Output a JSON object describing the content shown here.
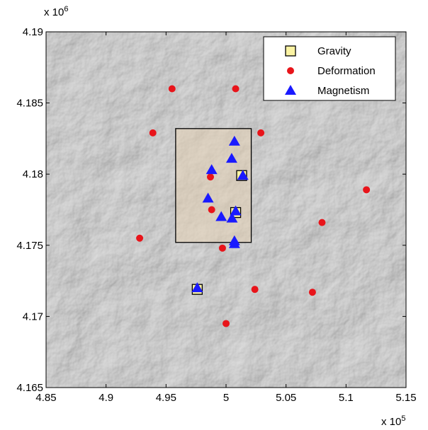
{
  "chart_data": {
    "type": "scatter",
    "xlim": [
      4.85,
      5.15
    ],
    "ylim": [
      4.165,
      4.19
    ],
    "xticks": [
      4.85,
      4.9,
      4.95,
      5,
      5.05,
      5.1,
      5.15
    ],
    "yticks": [
      4.165,
      4.17,
      4.175,
      4.18,
      4.185,
      4.19
    ],
    "x_multiplier": {
      "base": "x 10",
      "exponent": "5"
    },
    "y_multiplier": {
      "base": "x 10",
      "exponent": "6"
    },
    "legend": "upper right",
    "highlight_box": {
      "x": [
        4.958,
        5.021
      ],
      "y": [
        4.1752,
        4.1832
      ]
    },
    "series": [
      {
        "name": "Gravity",
        "color": "#fbf3a3",
        "marker": "square",
        "x": [
          5.013,
          5.008,
          4.976
        ],
        "y": [
          4.1799,
          4.1773,
          4.1719
        ]
      },
      {
        "name": "Deformation",
        "color": "#e8141a",
        "marker": "circle",
        "x": [
          4.955,
          5.008,
          4.939,
          5.029,
          4.987,
          5.117,
          4.988,
          5.08,
          4.928,
          4.997,
          5.024,
          5.072,
          5.0
        ],
        "y": [
          4.186,
          4.186,
          4.1829,
          4.1829,
          4.1798,
          4.1789,
          4.1775,
          4.1766,
          4.1755,
          4.1748,
          4.1719,
          4.1717,
          4.1695
        ]
      },
      {
        "name": "Magnetism",
        "color": "#1a1aff",
        "marker": "triangle",
        "x": [
          5.007,
          5.0047,
          4.988,
          5.014,
          4.985,
          5.008,
          4.996,
          5.005,
          5.007,
          5.007,
          4.976
        ],
        "y": [
          4.1823,
          4.1811,
          4.1803,
          4.1799,
          4.1783,
          4.1774,
          4.177,
          4.1769,
          4.1753,
          4.1751,
          4.172
        ]
      }
    ]
  }
}
